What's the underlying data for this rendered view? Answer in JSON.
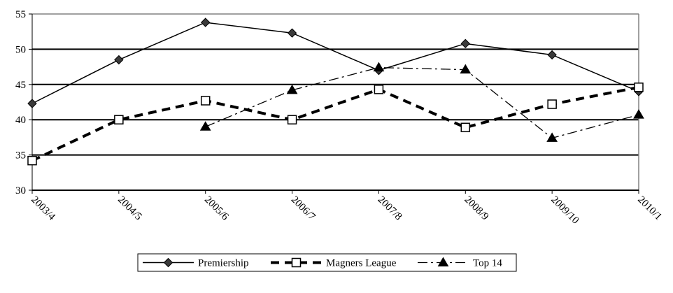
{
  "chart_data": {
    "type": "line",
    "categories": [
      "2003/4",
      "2004/5",
      "2005/6",
      "2006/7",
      "2007/8",
      "2008/9",
      "2009/10",
      "2010/1"
    ],
    "ylim": [
      30,
      55
    ],
    "yticks": [
      30,
      35,
      40,
      45,
      50,
      55
    ],
    "grid": true,
    "legend_position": "bottom",
    "series": [
      {
        "name": "Premiership",
        "values": [
          42.3,
          48.5,
          53.8,
          52.3,
          47.0,
          50.8,
          49.2,
          44.0
        ],
        "style": "solid",
        "marker": "diamond"
      },
      {
        "name": "Magners League",
        "values": [
          34.2,
          40.0,
          42.7,
          40.0,
          44.3,
          38.9,
          42.2,
          44.6
        ],
        "style": "dashed",
        "marker": "square"
      },
      {
        "name": "Top 14",
        "values": [
          null,
          null,
          39.0,
          44.2,
          47.4,
          47.1,
          37.4,
          40.7
        ],
        "style": "dashdot",
        "marker": "triangle"
      }
    ],
    "colors": {
      "line": "#000000",
      "grid": "#000000",
      "frame": "#808080"
    }
  }
}
